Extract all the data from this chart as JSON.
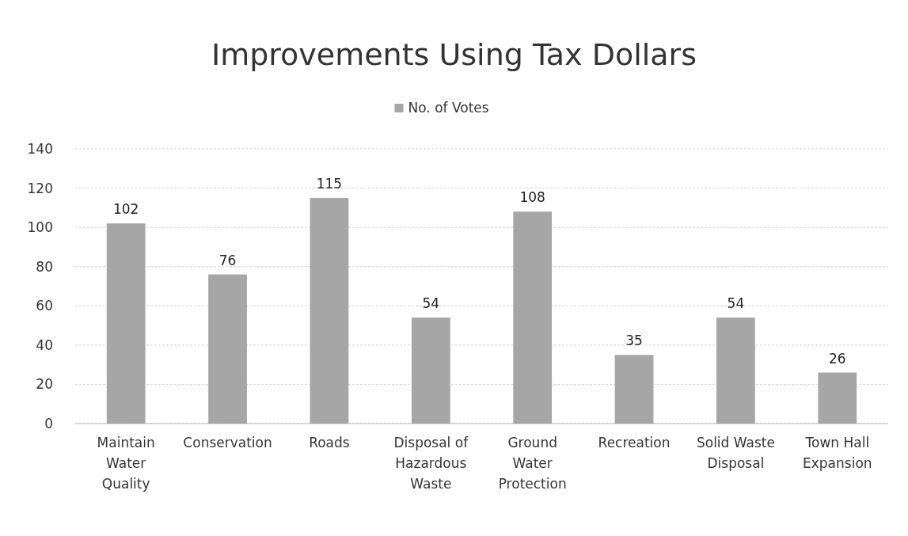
{
  "chart_data": {
    "type": "bar",
    "title": "Improvements Using Tax Dollars",
    "categories": [
      "Maintain Water Quality",
      "Conservation",
      "Roads",
      "Disposal of Hazardous Waste",
      "Ground Water Protection",
      "Recreation",
      "Solid Waste Disposal",
      "Town Hall Expansion"
    ],
    "series": [
      {
        "name": "No. of Votes",
        "color": "#a6a6a6",
        "values": [
          102,
          76,
          115,
          54,
          108,
          35,
          54,
          26
        ]
      }
    ],
    "ylim": [
      0,
      140
    ],
    "yticks": [
      0,
      20,
      40,
      60,
      80,
      100,
      120,
      140
    ],
    "grid": "y",
    "legend": "top",
    "data_labels": true
  }
}
